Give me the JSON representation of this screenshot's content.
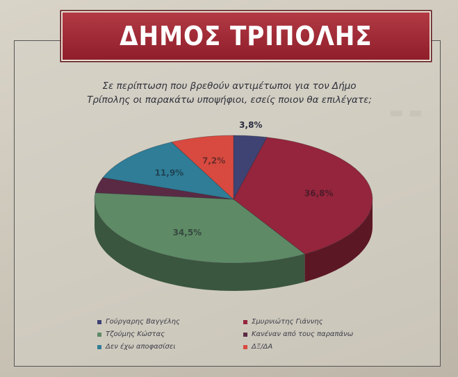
{
  "header": {
    "title": "ΔΗΜΟΣ ΤΡΙΠΟΛΗΣ"
  },
  "question": {
    "line1": "Σε περίπτωση που βρεθούν αντιμέτωποι για τον Δήμο",
    "line2": "Τρίπολης οι παρακάτω υποψήφιοι, εσείς ποιον θα επιλέγατε;"
  },
  "chart_data": {
    "type": "pie",
    "title": "ΔΗΜΟΣ ΤΡΙΠΟΛΗΣ",
    "labels": [
      "Γούργαρης Βαγγέλης",
      "Σμυρνιώτης Γιάννης",
      "Τζούμης Κώστας",
      "Κανέναν από τους παραπάνω",
      "Δεν έχω αποφασίσει",
      "ΔΞ/ΔΑ"
    ],
    "values": [
      3.8,
      36.8,
      34.5,
      3.8,
      11.9,
      7.2
    ],
    "value_labels": [
      "3,8%",
      "36,8%",
      "34,5%",
      "",
      "11,9%",
      "7,2%"
    ],
    "colors": [
      "#3f4373",
      "#94253c",
      "#5e8a66",
      "#5a2a44",
      "#2f7d97",
      "#d84a3f"
    ],
    "legend_position": "bottom"
  }
}
